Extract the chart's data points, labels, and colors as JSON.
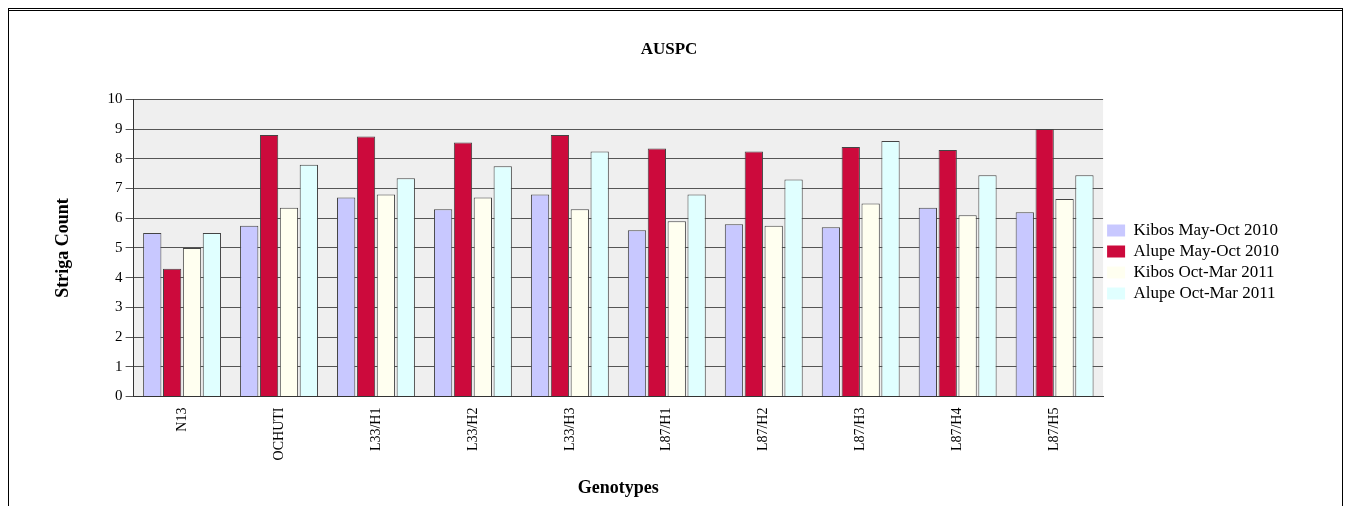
{
  "chart_data": {
    "type": "bar",
    "title": "AUSPC",
    "xlabel": "Genotypes",
    "ylabel": "Striga Count",
    "categories": [
      "N13",
      "OCHUTI",
      "L33/H1",
      "L33/H2",
      "L33/H3",
      "L87/H1",
      "L87/H2",
      "L87/H3",
      "L87/H4",
      "L87/H5"
    ],
    "series": [
      {
        "name": "Kibos May-Oct 2010",
        "color": "#c8c8ff",
        "values": [
          5.5,
          5.75,
          6.7,
          6.3,
          6.8,
          5.6,
          5.8,
          5.7,
          6.35,
          6.2
        ]
      },
      {
        "name": "Alupe May-Oct 2010",
        "color": "#cc0a3c",
        "values": [
          4.3,
          8.8,
          8.75,
          8.55,
          8.8,
          8.35,
          8.25,
          8.4,
          8.3,
          9.0
        ]
      },
      {
        "name": "Kibos Oct-Mar 2011",
        "color": "#fffff0",
        "values": [
          5.0,
          6.35,
          6.8,
          6.7,
          6.3,
          5.9,
          5.75,
          6.5,
          6.1,
          6.65
        ]
      },
      {
        "name": "Alupe Oct-Mar 2011",
        "color": "#e0ffff",
        "values": [
          5.5,
          7.8,
          7.35,
          7.75,
          8.25,
          6.8,
          7.3,
          8.6,
          7.45,
          7.45
        ]
      }
    ],
    "ylim": [
      0,
      10
    ],
    "yticks": [
      0,
      1,
      2,
      3,
      4,
      5,
      6,
      7,
      8,
      9,
      10
    ],
    "grid": "y",
    "legend": "right"
  }
}
